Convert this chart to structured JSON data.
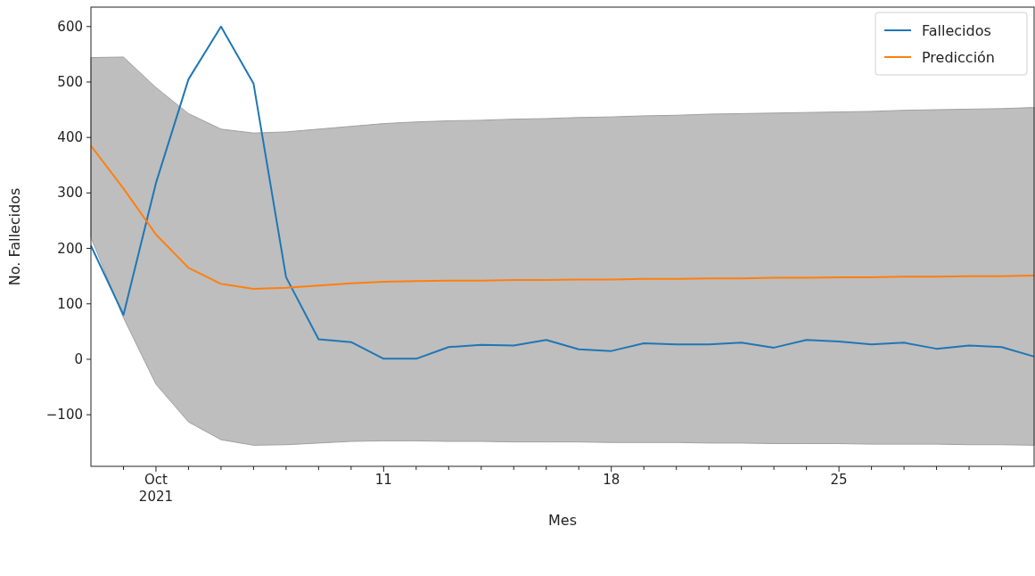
{
  "chart_data": {
    "type": "line",
    "xlabel": "Mes",
    "ylabel": "No. Fallecidos",
    "x": [
      "2021-10-02",
      "2021-10-03",
      "2021-10-04",
      "2021-10-05",
      "2021-10-06",
      "2021-10-07",
      "2021-10-08",
      "2021-10-09",
      "2021-10-10",
      "2021-10-11",
      "2021-10-12",
      "2021-10-13",
      "2021-10-14",
      "2021-10-15",
      "2021-10-16",
      "2021-10-17",
      "2021-10-18",
      "2021-10-19",
      "2021-10-20",
      "2021-10-21",
      "2021-10-22",
      "2021-10-23",
      "2021-10-24",
      "2021-10-25",
      "2021-10-26",
      "2021-10-27",
      "2021-10-28",
      "2021-10-29",
      "2021-10-30",
      "2021-10-31"
    ],
    "series": [
      {
        "name": "Fallecidos",
        "color": "#1f77b4",
        "values": [
          205,
          80,
          318,
          505,
          600,
          497,
          148,
          36,
          31,
          1,
          1,
          22,
          26,
          25,
          35,
          18,
          15,
          29,
          27,
          27,
          30,
          21,
          35,
          32,
          27,
          30,
          19,
          25,
          22,
          5
        ]
      },
      {
        "name": "Predicción",
        "color": "#ff7f0e",
        "values": [
          385,
          308,
          225,
          165,
          136,
          127,
          129,
          133,
          137,
          140,
          141,
          142,
          142,
          143,
          143,
          144,
          144,
          145,
          145,
          146,
          146,
          147,
          147,
          148,
          148,
          149,
          149,
          150,
          150,
          151
        ],
        "lower": [
          220,
          75,
          -45,
          -113,
          -145,
          -155,
          -154,
          -151,
          -148,
          -147,
          -147,
          -148,
          -148,
          -149,
          -149,
          -149,
          -150,
          -150,
          -150,
          -151,
          -151,
          -152,
          -152,
          -152,
          -153,
          -153,
          -153,
          -154,
          -154,
          -155
        ],
        "upper": [
          544,
          545,
          490,
          443,
          415,
          408,
          410,
          415,
          420,
          425,
          428,
          430,
          431,
          433,
          434,
          436,
          437,
          439,
          440,
          442,
          443,
          444,
          445,
          446,
          447,
          449,
          450,
          451,
          452,
          454
        ]
      }
    ],
    "xlim": [
      "2021-10-02",
      "2021-10-31"
    ],
    "xticks": [
      {
        "value": "2021-10-03",
        "label": null
      },
      {
        "value": "2021-10-04",
        "label": "Oct\n2021"
      },
      {
        "value": "2021-10-05",
        "label": null
      },
      {
        "value": "2021-10-06",
        "label": null
      },
      {
        "value": "2021-10-07",
        "label": null
      },
      {
        "value": "2021-10-08",
        "label": null
      },
      {
        "value": "2021-10-09",
        "label": null
      },
      {
        "value": "2021-10-10",
        "label": null
      },
      {
        "value": "2021-10-11",
        "label": "11"
      },
      {
        "value": "2021-10-12",
        "label": null
      },
      {
        "value": "2021-10-13",
        "label": null
      },
      {
        "value": "2021-10-14",
        "label": null
      },
      {
        "value": "2021-10-15",
        "label": null
      },
      {
        "value": "2021-10-16",
        "label": null
      },
      {
        "value": "2021-10-17",
        "label": null
      },
      {
        "value": "2021-10-18",
        "label": "18"
      },
      {
        "value": "2021-10-19",
        "label": null
      },
      {
        "value": "2021-10-20",
        "label": null
      },
      {
        "value": "2021-10-21",
        "label": null
      },
      {
        "value": "2021-10-22",
        "label": null
      },
      {
        "value": "2021-10-23",
        "label": null
      },
      {
        "value": "2021-10-24",
        "label": null
      },
      {
        "value": "2021-10-25",
        "label": "25"
      },
      {
        "value": "2021-10-26",
        "label": null
      },
      {
        "value": "2021-10-27",
        "label": null
      },
      {
        "value": "2021-10-28",
        "label": null
      },
      {
        "value": "2021-10-29",
        "label": null
      },
      {
        "value": "2021-10-30",
        "label": null
      }
    ],
    "ylim": [
      -193,
      635
    ],
    "yticks": [
      {
        "value": -100,
        "label": "−100"
      },
      0,
      100,
      200,
      300,
      400,
      500,
      600
    ],
    "legend": "top right",
    "grid": false,
    "line_style": "solid",
    "marker": "none"
  }
}
